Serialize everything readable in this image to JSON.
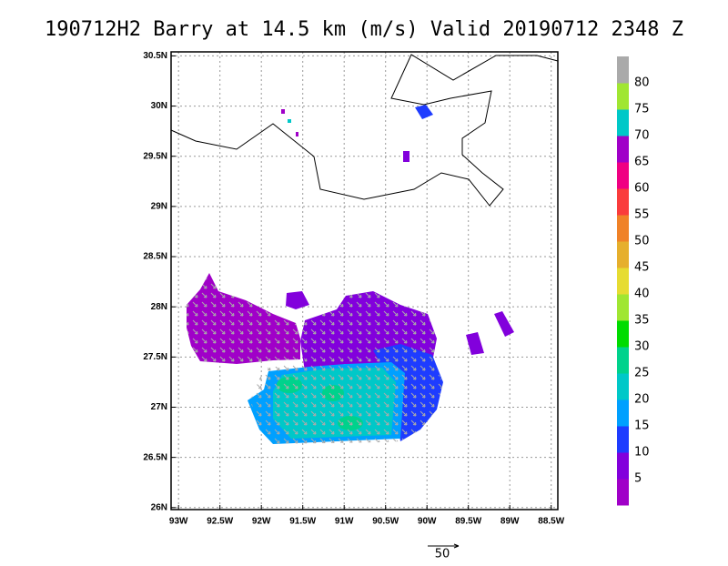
{
  "title": "190712H2 Barry at 14.5 km (m/s) Valid 20190712 2348 Z",
  "map": {
    "xlim": [
      -93.09,
      -88.42
    ],
    "ylim": [
      25.98,
      30.54
    ],
    "xticks": [
      {
        "value": -93,
        "label": "93W"
      },
      {
        "value": -92.5,
        "label": "92.5W"
      },
      {
        "value": -92,
        "label": "92W"
      },
      {
        "value": -91.5,
        "label": "91.5W"
      },
      {
        "value": -91,
        "label": "91W"
      },
      {
        "value": -90.5,
        "label": "90.5W"
      },
      {
        "value": -90,
        "label": "90W"
      },
      {
        "value": -89.5,
        "label": "89.5W"
      },
      {
        "value": -89,
        "label": "89W"
      },
      {
        "value": -88.5,
        "label": "88.5W"
      }
    ],
    "yticks": [
      {
        "value": 26,
        "label": "26N"
      },
      {
        "value": 26.5,
        "label": "26.5N"
      },
      {
        "value": 27,
        "label": "27N"
      },
      {
        "value": 27.5,
        "label": "27.5N"
      },
      {
        "value": 28,
        "label": "28N"
      },
      {
        "value": 28.5,
        "label": "28.5N"
      },
      {
        "value": 29,
        "label": "29N"
      },
      {
        "value": 29.5,
        "label": "29.5N"
      },
      {
        "value": 30,
        "label": "30N"
      },
      {
        "value": 30.5,
        "label": "30.5N"
      }
    ],
    "grid": true
  },
  "colorbar": {
    "levels": [
      5,
      10,
      15,
      20,
      25,
      30,
      35,
      40,
      45,
      50,
      55,
      60,
      65,
      70,
      75,
      80
    ],
    "colors": [
      "#a000c8",
      "#8200dc",
      "#1e3cff",
      "#00a0ff",
      "#00c8c8",
      "#00d28c",
      "#00dc00",
      "#a0e632",
      "#e6dc32",
      "#e6af2d",
      "#f08228",
      "#fa3c3c",
      "#f00082",
      "#a000c8",
      "#00c8c8",
      "#a0e632",
      "#aaaaaa"
    ]
  },
  "vector_reference": {
    "label": 50
  }
}
